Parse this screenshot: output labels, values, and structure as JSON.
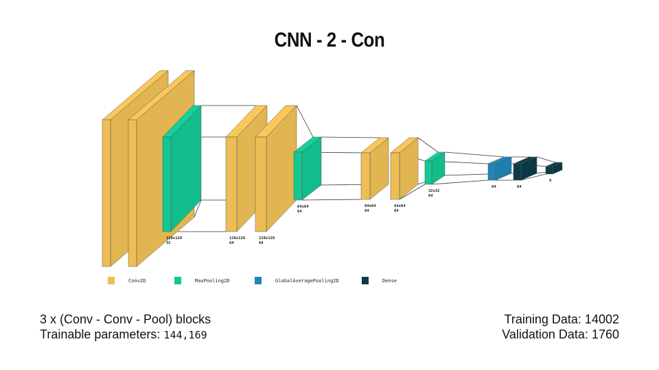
{
  "title": "CNN - 2 - Con",
  "colors": {
    "conv2d": "#EDBE55",
    "maxpool": "#14C792",
    "gap": "#1F86B5",
    "dense": "#0E3A48"
  },
  "layers": [
    {
      "type": "conv2d",
      "label1": "",
      "label2": ""
    },
    {
      "type": "conv2d",
      "label1": "",
      "label2": ""
    },
    {
      "type": "maxpool",
      "label1": "128x128",
      "label2": "32"
    },
    {
      "type": "conv2d",
      "label1": "128x128",
      "label2": "64"
    },
    {
      "type": "conv2d",
      "label1": "128x128",
      "label2": "64"
    },
    {
      "type": "maxpool",
      "label1": "64x64",
      "label2": "64"
    },
    {
      "type": "conv2d",
      "label1": "64x64",
      "label2": "64"
    },
    {
      "type": "conv2d",
      "label1": "64x64",
      "label2": "64"
    },
    {
      "type": "maxpool",
      "label1": "32x32",
      "label2": "64"
    },
    {
      "type": "gap",
      "label1": "64",
      "label2": ""
    },
    {
      "type": "dense",
      "label1": "64",
      "label2": ""
    },
    {
      "type": "dense",
      "label1": "9",
      "label2": ""
    }
  ],
  "legend": [
    {
      "type": "conv2d",
      "label": "Conv2D"
    },
    {
      "type": "maxpool",
      "label": "MaxPooling2D"
    },
    {
      "type": "gap",
      "label": "GlobalAveragePooling2D"
    },
    {
      "type": "dense",
      "label": "Dense"
    }
  ],
  "info_left": {
    "line1": "3 x (Conv - Conv - Pool) blocks",
    "line2_prefix": "Trainable parameters: ",
    "line2_value": "144,169"
  },
  "info_right": {
    "line1": "Training Data: 14002",
    "line2": "Validation Data: 1760"
  }
}
